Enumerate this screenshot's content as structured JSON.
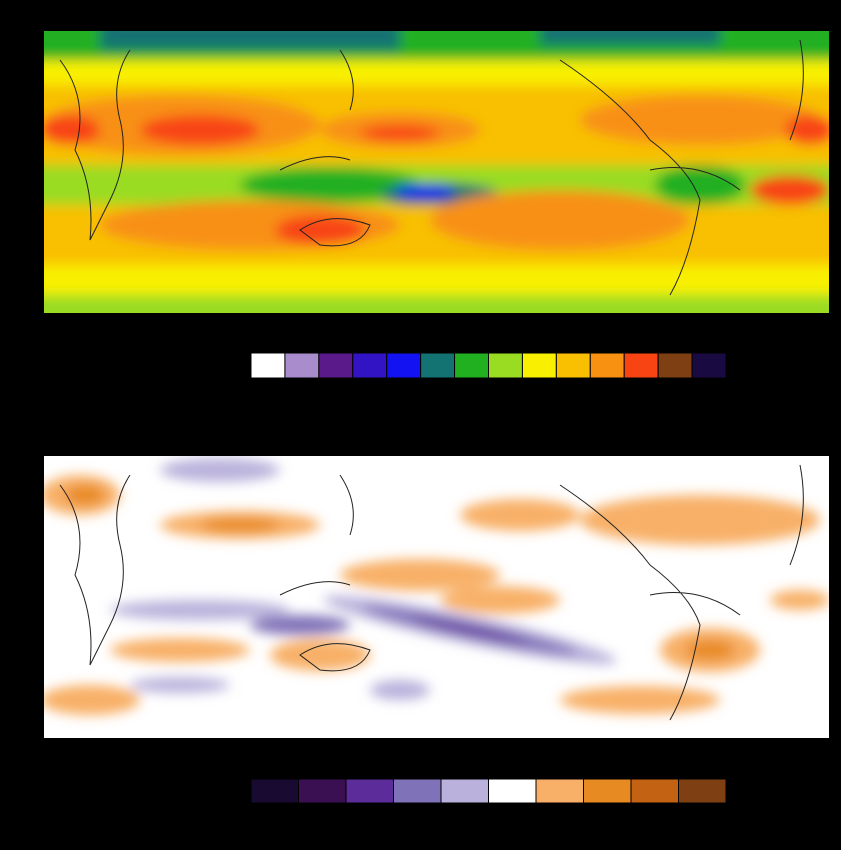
{
  "colorbars": [
    {
      "colors": [
        "#ffffff",
        "#a98ccb",
        "#5a1a8a",
        "#3214c4",
        "#1212f2",
        "#137272",
        "#20b020",
        "#9adc22",
        "#f8f000",
        "#f8c000",
        "#f89012",
        "#f84412",
        "#7e4012",
        "#1a0a42"
      ]
    },
    {
      "colors": [
        "#180a30",
        "#3a1052",
        "#5c2c9a",
        "#8072b8",
        "#bab2dc",
        "#ffffff",
        "#f8b068",
        "#e88a22",
        "#c26212",
        "#7e4012"
      ]
    }
  ]
}
